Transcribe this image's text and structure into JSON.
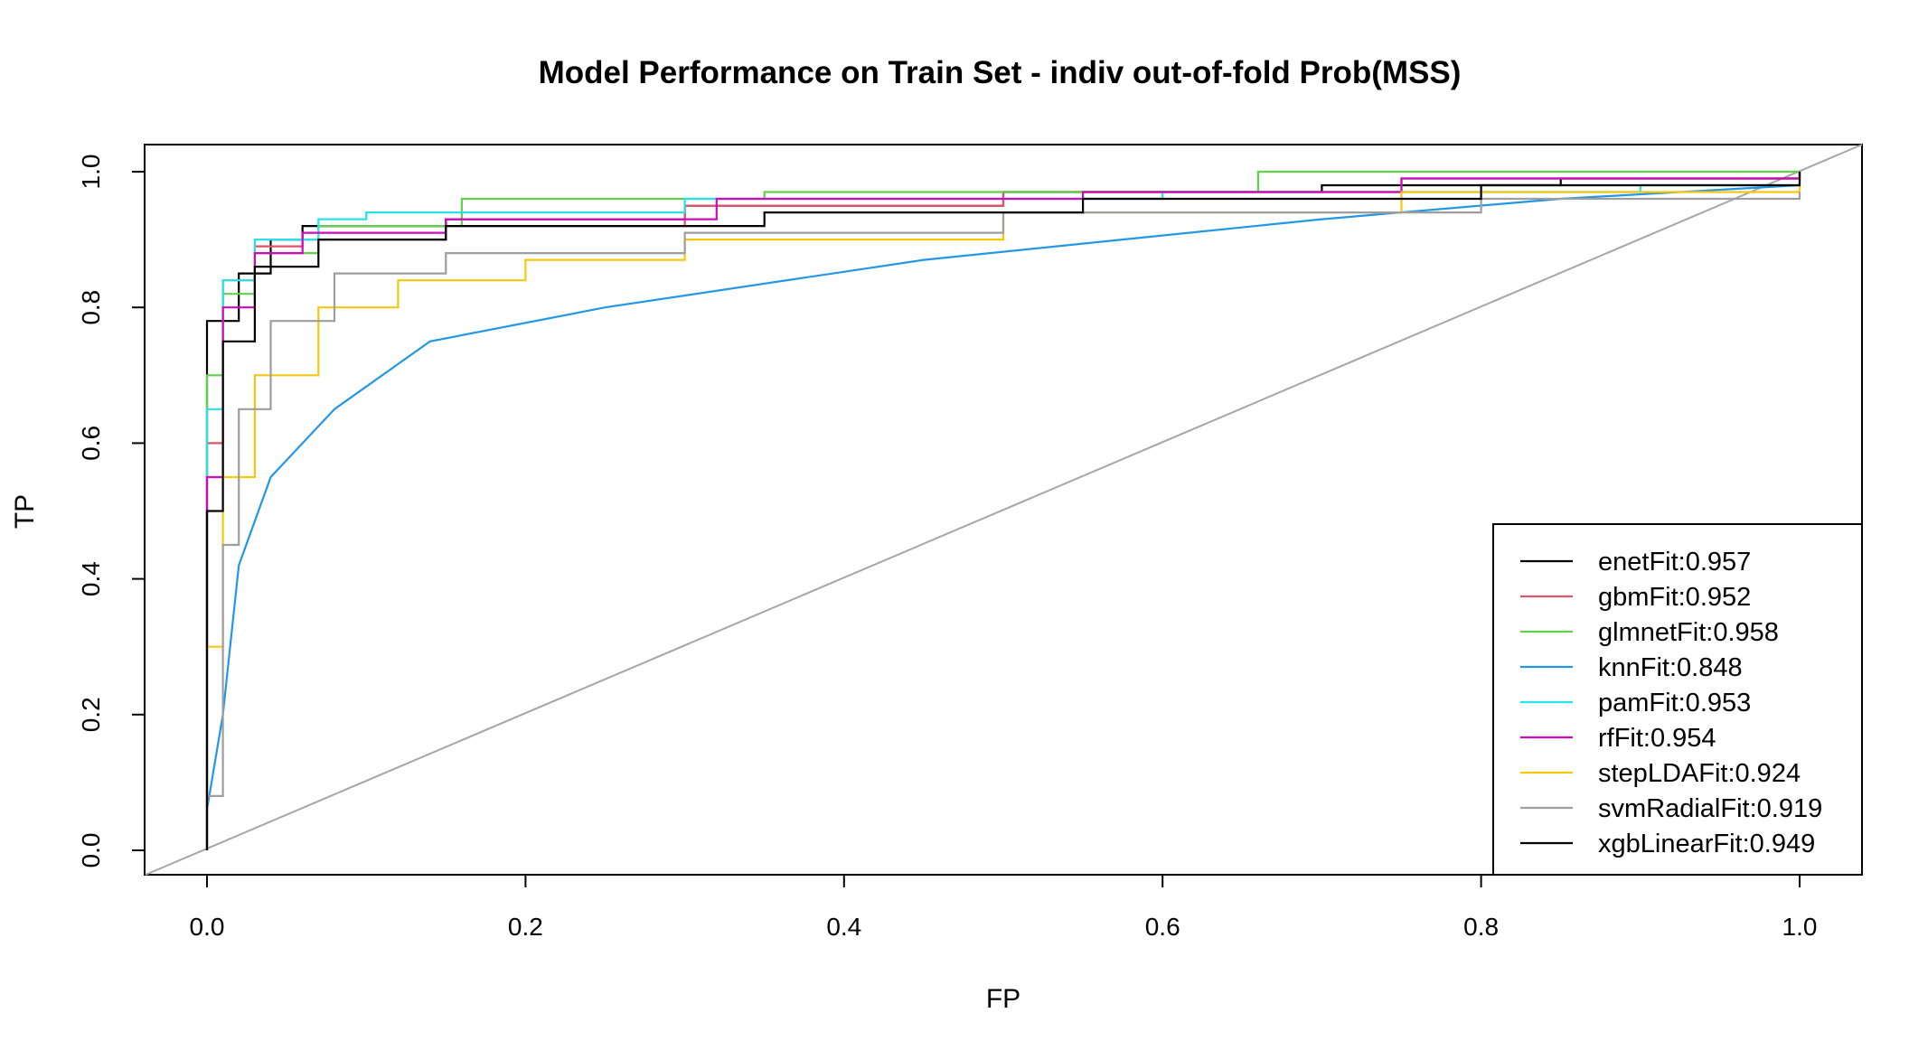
{
  "chart_data": {
    "type": "line",
    "title": "Model Performance on Train Set - indiv out-of-fold Prob(MSS)",
    "xlabel": "FP",
    "ylabel": "TP",
    "xlim": [
      0,
      1
    ],
    "ylim": [
      0,
      1
    ],
    "x_ticks": [
      "0.0",
      "0.2",
      "0.4",
      "0.6",
      "0.8",
      "1.0"
    ],
    "y_ticks": [
      "0.0",
      "0.2",
      "0.4",
      "0.6",
      "0.8",
      "1.0"
    ],
    "grid": false,
    "legend_position": "bottom-right",
    "reference_line": {
      "x": [
        0,
        1
      ],
      "y": [
        0,
        1
      ],
      "color": "#a6a6a6"
    },
    "series": [
      {
        "name": "enetFit:0.957",
        "color": "#000000",
        "style": "step",
        "points": [
          [
            0,
            0
          ],
          [
            0,
            0.78
          ],
          [
            0.02,
            0.85
          ],
          [
            0.04,
            0.9
          ],
          [
            0.06,
            0.92
          ],
          [
            0.15,
            0.93
          ],
          [
            0.3,
            0.95
          ],
          [
            0.5,
            0.97
          ],
          [
            0.7,
            0.98
          ],
          [
            0.85,
            0.99
          ],
          [
            1,
            1
          ]
        ]
      },
      {
        "name": "gbmFit:0.952",
        "color": "#df536b",
        "style": "step",
        "points": [
          [
            0,
            0
          ],
          [
            0,
            0.6
          ],
          [
            0.01,
            0.84
          ],
          [
            0.03,
            0.89
          ],
          [
            0.06,
            0.9
          ],
          [
            0.15,
            0.92
          ],
          [
            0.3,
            0.95
          ],
          [
            0.5,
            0.97
          ],
          [
            0.75,
            0.99
          ],
          [
            1,
            1
          ]
        ]
      },
      {
        "name": "glmnetFit:0.958",
        "color": "#61d04f",
        "style": "step",
        "points": [
          [
            0,
            0
          ],
          [
            0,
            0.7
          ],
          [
            0.01,
            0.82
          ],
          [
            0.03,
            0.88
          ],
          [
            0.07,
            0.92
          ],
          [
            0.16,
            0.96
          ],
          [
            0.35,
            0.97
          ],
          [
            0.66,
            1.0
          ],
          [
            1,
            1
          ]
        ]
      },
      {
        "name": "knnFit:0.848",
        "color": "#2297e6",
        "style": "line",
        "points": [
          [
            0,
            0
          ],
          [
            0,
            0.06
          ],
          [
            0.01,
            0.2
          ],
          [
            0.02,
            0.42
          ],
          [
            0.04,
            0.55
          ],
          [
            0.08,
            0.65
          ],
          [
            0.14,
            0.75
          ],
          [
            0.25,
            0.8
          ],
          [
            0.45,
            0.87
          ],
          [
            0.7,
            0.93
          ],
          [
            0.85,
            0.96
          ],
          [
            1,
            0.98
          ]
        ]
      },
      {
        "name": "pamFit:0.953",
        "color": "#28e2e5",
        "style": "step",
        "points": [
          [
            0,
            0
          ],
          [
            0,
            0.65
          ],
          [
            0.01,
            0.84
          ],
          [
            0.03,
            0.9
          ],
          [
            0.07,
            0.93
          ],
          [
            0.1,
            0.94
          ],
          [
            0.3,
            0.96
          ],
          [
            0.6,
            0.97
          ],
          [
            0.9,
            0.98
          ],
          [
            1,
            1
          ]
        ]
      },
      {
        "name": "rfFit:0.954",
        "color": "#cd0bbc",
        "style": "step",
        "points": [
          [
            0,
            0
          ],
          [
            0,
            0.55
          ],
          [
            0.01,
            0.8
          ],
          [
            0.03,
            0.88
          ],
          [
            0.06,
            0.91
          ],
          [
            0.15,
            0.93
          ],
          [
            0.32,
            0.96
          ],
          [
            0.55,
            0.97
          ],
          [
            0.75,
            0.99
          ],
          [
            1,
            1
          ]
        ]
      },
      {
        "name": "stepLDAFit:0.924",
        "color": "#f5c710",
        "style": "step",
        "points": [
          [
            0,
            0
          ],
          [
            0,
            0.3
          ],
          [
            0.01,
            0.55
          ],
          [
            0.03,
            0.7
          ],
          [
            0.07,
            0.8
          ],
          [
            0.12,
            0.84
          ],
          [
            0.2,
            0.87
          ],
          [
            0.3,
            0.9
          ],
          [
            0.5,
            0.94
          ],
          [
            0.75,
            0.97
          ],
          [
            1,
            1
          ]
        ]
      },
      {
        "name": "svmRadialFit:0.919",
        "color": "#9e9e9e",
        "style": "step",
        "points": [
          [
            0,
            0
          ],
          [
            0,
            0.08
          ],
          [
            0.01,
            0.45
          ],
          [
            0.02,
            0.65
          ],
          [
            0.04,
            0.78
          ],
          [
            0.08,
            0.85
          ],
          [
            0.15,
            0.88
          ],
          [
            0.3,
            0.91
          ],
          [
            0.5,
            0.94
          ],
          [
            0.8,
            0.96
          ],
          [
            1,
            0.97
          ]
        ]
      },
      {
        "name": "xgbLinearFit:0.949",
        "color": "#000000",
        "style": "step",
        "points": [
          [
            0,
            0
          ],
          [
            0,
            0.5
          ],
          [
            0.01,
            0.75
          ],
          [
            0.03,
            0.86
          ],
          [
            0.07,
            0.9
          ],
          [
            0.15,
            0.92
          ],
          [
            0.35,
            0.94
          ],
          [
            0.55,
            0.96
          ],
          [
            0.8,
            0.98
          ],
          [
            1,
            1
          ]
        ]
      }
    ]
  }
}
